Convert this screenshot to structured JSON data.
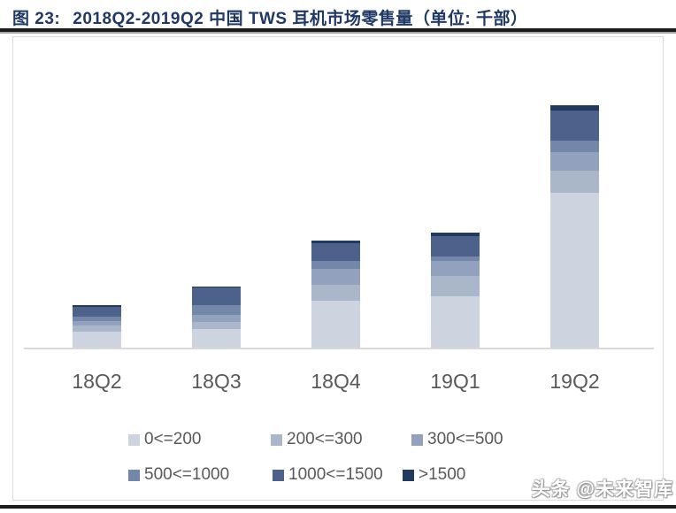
{
  "figure": {
    "label": "图 23:",
    "title": "2018Q2-2019Q2 中国 TWS 耳机市场零售量（单位: 千部）"
  },
  "watermark": "头条 @未来智库",
  "colors": {
    "title_text": "#1f3864",
    "rule_dark": "#1c1c1c",
    "box_border": "#d9d9d9",
    "axis_line": "#d9d9d9",
    "label_text": "#595959"
  },
  "chart_data": {
    "type": "bar",
    "stacked": true,
    "title": "2018Q2-2019Q2 中国 TWS 耳机市场零售量",
    "unit": "千部",
    "xlabel": "",
    "ylabel": "",
    "grid": false,
    "y_axis_shown": false,
    "value_note": "no y-axis labels in source; values are relative heights estimated from pixels",
    "legend_position": "bottom",
    "categories": [
      "18Q2",
      "18Q3",
      "18Q4",
      "19Q1",
      "19Q2"
    ],
    "series": [
      {
        "name": "0<=200",
        "color": "#cdd3df",
        "values": [
          18,
          21,
          53,
          58,
          175
        ]
      },
      {
        "name": "200<=300",
        "color": "#aab6ca",
        "values": [
          7,
          8,
          18,
          23,
          25
        ]
      },
      {
        "name": "300<=500",
        "color": "#92a1bd",
        "values": [
          5,
          8,
          18,
          17,
          21
        ]
      },
      {
        "name": "500<=1000",
        "color": "#7387aa",
        "values": [
          5,
          11,
          9,
          5,
          13
        ]
      },
      {
        "name": "1000<=1500",
        "color": "#4d628a",
        "values": [
          11,
          20,
          20,
          23,
          34
        ]
      },
      {
        "name": ">1500",
        "color": "#203a60",
        "values": [
          2,
          1,
          3,
          4,
          6
        ]
      }
    ]
  }
}
